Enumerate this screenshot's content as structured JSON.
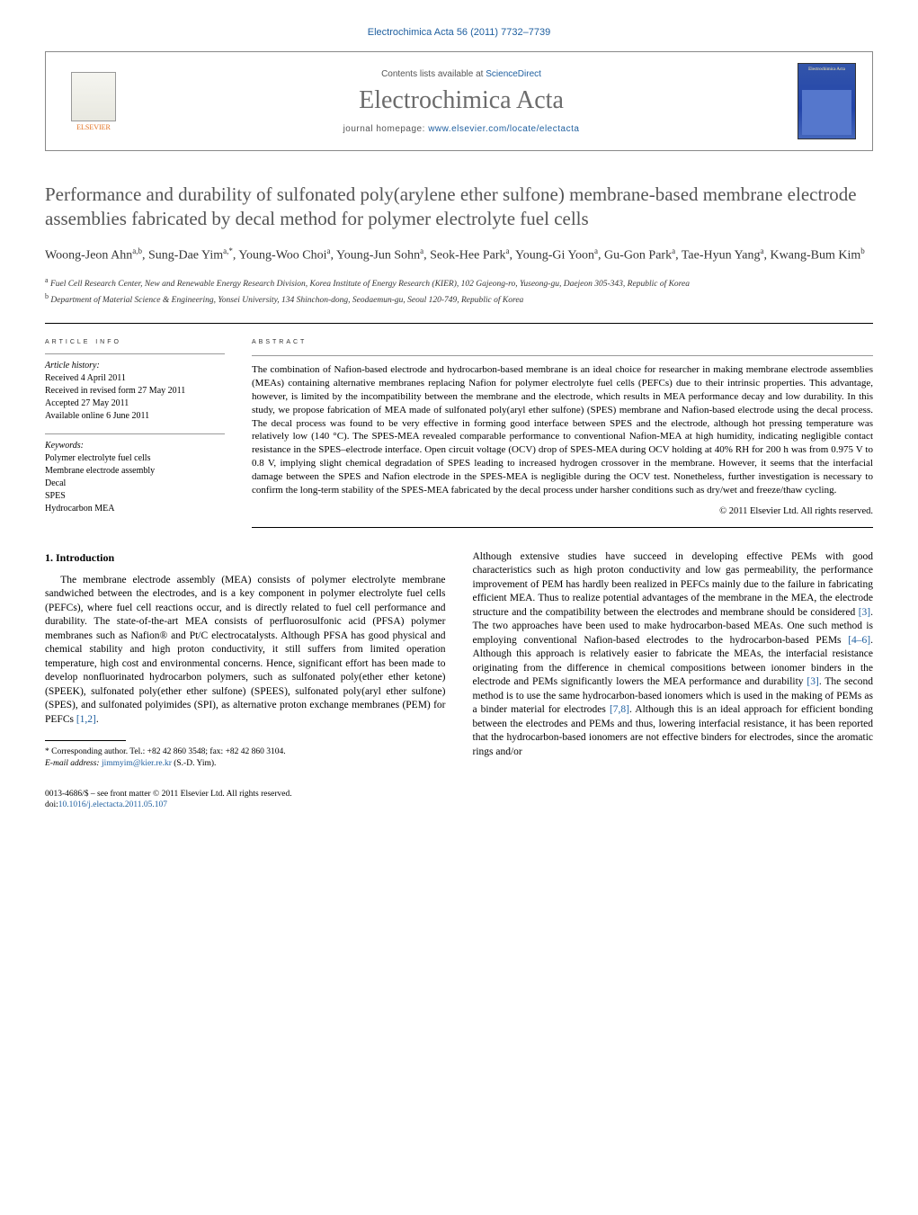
{
  "journal_ref": "Electrochimica Acta 56 (2011) 7732–7739",
  "contents_text_prefix": "Contents lists available at ",
  "contents_link": "ScienceDirect",
  "journal_name": "Electrochimica Acta",
  "homepage_prefix": "journal homepage: ",
  "homepage_url": "www.elsevier.com/locate/electacta",
  "publisher_name": "ELSEVIER",
  "cover_title": "Electrochimica Acta",
  "article_title": "Performance and durability of sulfonated poly(arylene ether sulfone) membrane-based membrane electrode assemblies fabricated by decal method for polymer electrolyte fuel cells",
  "authors_html": "Woong-Jeon Ahn<sup>a,b</sup>, Sung-Dae Yim<sup>a,*</sup>, Young-Woo Choi<sup>a</sup>, Young-Jun Sohn<sup>a</sup>, Seok-Hee Park<sup>a</sup>, Young-Gi Yoon<sup>a</sup>, Gu-Gon Park<sup>a</sup>, Tae-Hyun Yang<sup>a</sup>, Kwang-Bum Kim<sup>b</sup>",
  "affiliations": [
    {
      "sup": "a",
      "text": "Fuel Cell Research Center, New and Renewable Energy Research Division, Korea Institute of Energy Research (KIER), 102 Gajeong-ro, Yuseong-gu, Daejeon 305-343, Republic of Korea"
    },
    {
      "sup": "b",
      "text": "Department of Material Science & Engineering, Yonsei University, 134 Shinchon-dong, Seodaemun-gu, Seoul 120-749, Republic of Korea"
    }
  ],
  "info_heading": "ARTICLE INFO",
  "history_label": "Article history:",
  "history_lines": [
    "Received 4 April 2011",
    "Received in revised form 27 May 2011",
    "Accepted 27 May 2011",
    "Available online 6 June 2011"
  ],
  "keywords_label": "Keywords:",
  "keywords": [
    "Polymer electrolyte fuel cells",
    "Membrane electrode assembly",
    "Decal",
    "SPES",
    "Hydrocarbon MEA"
  ],
  "abstract_heading": "ABSTRACT",
  "abstract_text": "The combination of Nafion-based electrode and hydrocarbon-based membrane is an ideal choice for researcher in making membrane electrode assemblies (MEAs) containing alternative membranes replacing Nafion for polymer electrolyte fuel cells (PEFCs) due to their intrinsic properties. This advantage, however, is limited by the incompatibility between the membrane and the electrode, which results in MEA performance decay and low durability. In this study, we propose fabrication of MEA made of sulfonated poly(aryl ether sulfone) (SPES) membrane and Nafion-based electrode using the decal process. The decal process was found to be very effective in forming good interface between SPES and the electrode, although hot pressing temperature was relatively low (140 °C). The SPES-MEA revealed comparable performance to conventional Nafion-MEA at high humidity, indicating negligible contact resistance in the SPES–electrode interface. Open circuit voltage (OCV) drop of SPES-MEA during OCV holding at 40% RH for 200 h was from 0.975 V to 0.8 V, implying slight chemical degradation of SPES leading to increased hydrogen crossover in the membrane. However, it seems that the interfacial damage between the SPES and Nafion electrode in the SPES-MEA is negligible during the OCV test. Nonetheless, further investigation is necessary to confirm the long-term stability of the SPES-MEA fabricated by the decal process under harsher conditions such as dry/wet and freeze/thaw cycling.",
  "copyright": "© 2011 Elsevier Ltd. All rights reserved.",
  "intro_heading": "1. Introduction",
  "intro_col1": "The membrane electrode assembly (MEA) consists of polymer electrolyte membrane sandwiched between the electrodes, and is a key component in polymer electrolyte fuel cells (PEFCs), where fuel cell reactions occur, and is directly related to fuel cell performance and durability. The state-of-the-art MEA consists of perfluorosulfonic acid (PFSA) polymer membranes such as Nafion® and Pt/C electrocatalysts. Although PFSA has good physical and chemical stability and high proton conductivity, it still suffers from limited operation temperature, high cost and environmental concerns. Hence, significant effort has been made to develop nonfluorinated hydrocarbon polymers, such as sulfonated poly(ether ether ketone) (SPEEK), sulfonated poly(ether ether sulfone) (SPEES), sulfonated poly(aryl ether sulfone) (SPES), and sulfonated polyimides (SPI), as alternative proton exchange membranes (PEM) for PEFCs ",
  "intro_col1_ref": "[1,2]",
  "intro_col1_suffix": ".",
  "intro_col2_p1_pre": "Although extensive studies have succeed in developing effective PEMs with good characteristics such as high proton conductivity and low gas permeability, the performance improvement of PEM has hardly been realized in PEFCs mainly due to the failure in fabricating efficient MEA. Thus to realize potential advantages of the membrane in the MEA, the electrode structure and the compatibility between the electrodes and membrane should be considered ",
  "intro_col2_ref1": "[3]",
  "intro_col2_p1_mid": ". The two approaches have been used to make hydrocarbon-based MEAs. One such method is employing conventional Nafion-based electrodes to the hydrocarbon-based PEMs ",
  "intro_col2_ref2": "[4–6]",
  "intro_col2_p1_mid2": ". Although this approach is relatively easier to fabricate the MEAs, the interfacial resistance originating from the difference in chemical compositions between ionomer binders in the electrode and PEMs significantly lowers the MEA performance and durability ",
  "intro_col2_ref3": "[3]",
  "intro_col2_p1_mid3": ". The second method is to use the same hydrocarbon-based ionomers which is used in the making of PEMs as a binder material for electrodes ",
  "intro_col2_ref4": "[7,8]",
  "intro_col2_p1_end": ". Although this is an ideal approach for efficient bonding between the electrodes and PEMs and thus, lowering interfacial resistance, it has been reported that the hydrocarbon-based ionomers are not effective binders for electrodes, since the aromatic rings and/or",
  "footnote_marker": "*",
  "footnote_text": "Corresponding author. Tel.: +82 42 860 3548; fax: +82 42 860 3104.",
  "footnote_email_label": "E-mail address: ",
  "footnote_email": "jimmyim@kier.re.kr",
  "footnote_email_suffix": " (S.-D. Yim).",
  "issn_line": "0013-4686/$ – see front matter © 2011 Elsevier Ltd. All rights reserved.",
  "doi_prefix": "doi:",
  "doi": "10.1016/j.electacta.2011.05.107",
  "colors": {
    "link": "#2060a0",
    "title_gray": "#555555",
    "elsevier_orange": "#e37222",
    "cover_bg": "#3355aa"
  }
}
